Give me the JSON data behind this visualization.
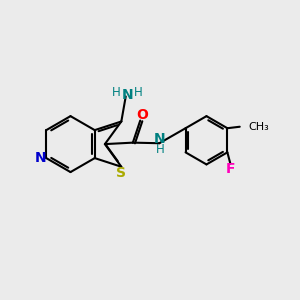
{
  "bg_color": "#ebebeb",
  "bond_color": "#000000",
  "bond_width": 1.5,
  "atom_colors": {
    "N_pyridine": "#0000cc",
    "N_amino": "#008080",
    "S": "#aaaa00",
    "O": "#ff0000",
    "NH_amide": "#008080",
    "F": "#ff00bb",
    "C": "#000000"
  },
  "font_size": 8.5,
  "figsize": [
    3.0,
    3.0
  ],
  "dpi": 100,
  "xlim": [
    0,
    10
  ],
  "ylim": [
    0,
    10
  ]
}
